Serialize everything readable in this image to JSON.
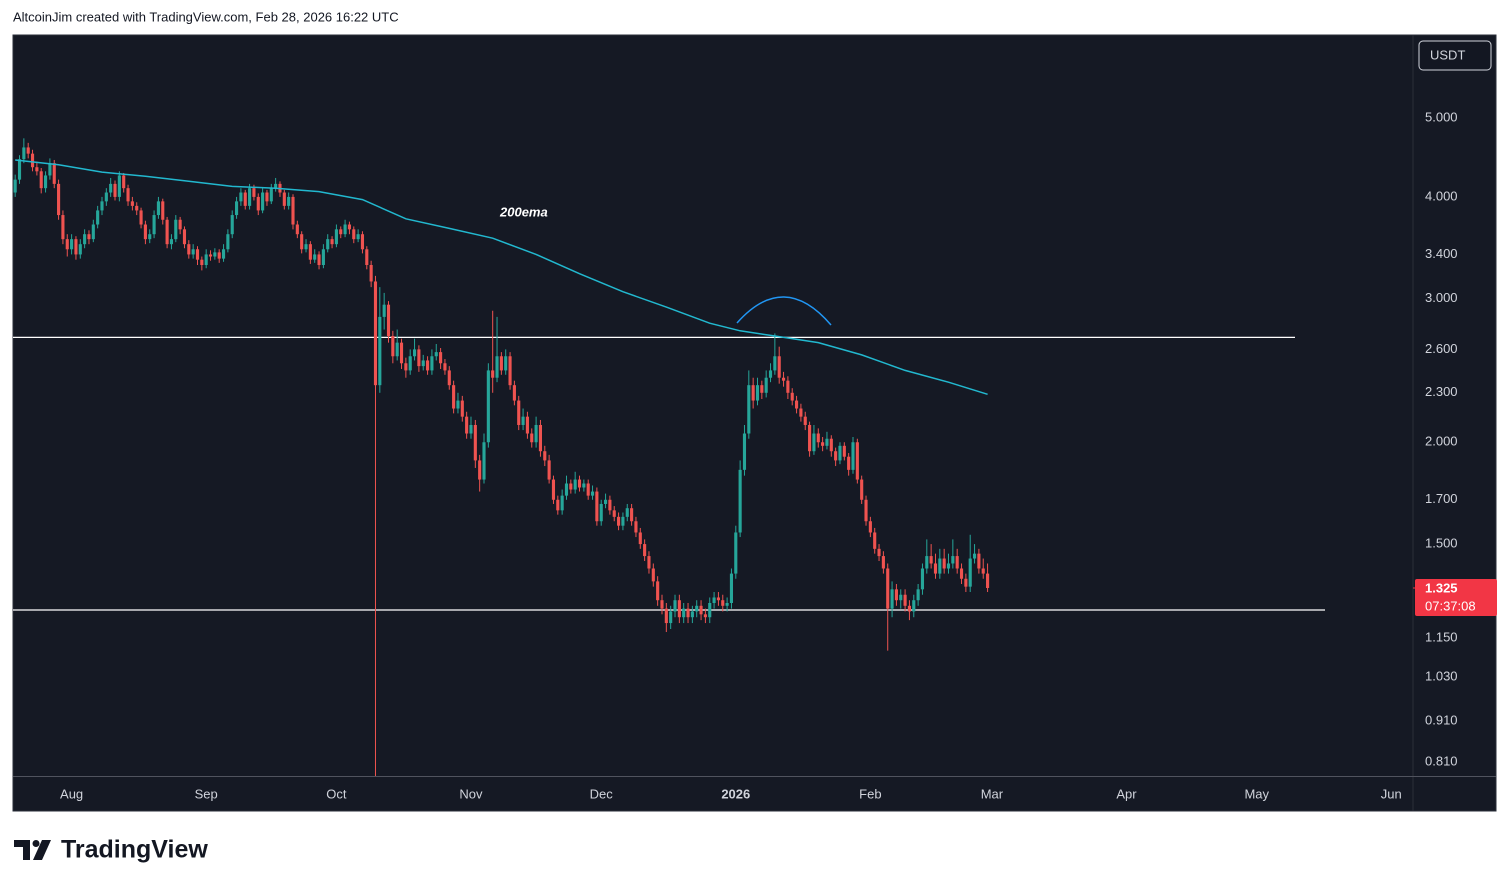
{
  "header": "AltcoinJim created with TradingView.com, Feb 28, 2026 16:22 UTC",
  "currency": "USDT",
  "brand": "TradingView",
  "chart_data": {
    "type": "candlestick",
    "up_color": "#26a69a",
    "down_color": "#ef5350",
    "log_scale": true,
    "xlim": [
      -0.5,
      322
    ],
    "xticks": [
      {
        "value": 13,
        "label": "Aug"
      },
      {
        "value": 44,
        "label": "Sep"
      },
      {
        "value": 74,
        "label": "Oct"
      },
      {
        "value": 105,
        "label": "Nov"
      },
      {
        "value": 135,
        "label": "Dec"
      },
      {
        "value": 166,
        "label": "2026"
      },
      {
        "value": 197,
        "label": "Feb"
      },
      {
        "value": 225,
        "label": "Mar"
      },
      {
        "value": 256,
        "label": "Apr"
      },
      {
        "value": 286,
        "label": "May"
      },
      {
        "value": 317,
        "label": "Jun"
      }
    ],
    "ylim": [
      0.779,
      6.32
    ],
    "yticks": [
      {
        "value": 5,
        "label": "5.000"
      },
      {
        "value": 4,
        "label": "4.000"
      },
      {
        "value": 3.4,
        "label": "3.400"
      },
      {
        "value": 3,
        "label": "3.000"
      },
      {
        "value": 2.6,
        "label": "2.600"
      },
      {
        "value": 2.3,
        "label": "2.300"
      },
      {
        "value": 2,
        "label": "2.000"
      },
      {
        "value": 1.7,
        "label": "1.700"
      },
      {
        "value": 1.5,
        "label": "1.500"
      },
      {
        "value": 1.15,
        "label": "1.150"
      },
      {
        "value": 1.03,
        "label": "1.030"
      },
      {
        "value": 0.91,
        "label": "0.910"
      },
      {
        "value": 0.81,
        "label": "0.810"
      }
    ],
    "ohlc": [
      [
        4.05,
        4.26,
        4.0,
        4.2
      ],
      [
        4.2,
        4.5,
        4.15,
        4.45
      ],
      [
        4.45,
        4.72,
        4.4,
        4.6
      ],
      [
        4.6,
        4.66,
        4.46,
        4.52
      ],
      [
        4.52,
        4.57,
        4.3,
        4.35
      ],
      [
        4.35,
        4.42,
        4.25,
        4.3
      ],
      [
        4.3,
        4.34,
        4.04,
        4.1
      ],
      [
        4.1,
        4.3,
        4.05,
        4.25
      ],
      [
        4.25,
        4.46,
        4.2,
        4.4
      ],
      [
        4.4,
        4.44,
        4.1,
        4.15
      ],
      [
        4.15,
        4.2,
        3.75,
        3.8
      ],
      [
        3.8,
        3.85,
        3.5,
        3.55
      ],
      [
        3.55,
        3.6,
        3.38,
        3.45
      ],
      [
        3.45,
        3.6,
        3.4,
        3.55
      ],
      [
        3.55,
        3.58,
        3.35,
        3.4
      ],
      [
        3.4,
        3.55,
        3.36,
        3.5
      ],
      [
        3.5,
        3.65,
        3.46,
        3.6
      ],
      [
        3.6,
        3.64,
        3.5,
        3.55
      ],
      [
        3.55,
        3.75,
        3.52,
        3.7
      ],
      [
        3.7,
        3.9,
        3.66,
        3.85
      ],
      [
        3.85,
        4.0,
        3.8,
        3.95
      ],
      [
        3.95,
        4.1,
        3.9,
        4.05
      ],
      [
        4.05,
        4.22,
        4.0,
        4.15
      ],
      [
        4.15,
        4.19,
        3.96,
        4.0
      ],
      [
        4.0,
        4.3,
        3.95,
        4.25
      ],
      [
        4.25,
        4.28,
        4.05,
        4.1
      ],
      [
        4.1,
        4.14,
        3.9,
        3.95
      ],
      [
        3.95,
        4.0,
        3.85,
        3.9
      ],
      [
        3.9,
        3.94,
        3.8,
        3.85
      ],
      [
        3.85,
        3.88,
        3.66,
        3.7
      ],
      [
        3.7,
        3.74,
        3.5,
        3.55
      ],
      [
        3.55,
        3.65,
        3.51,
        3.6
      ],
      [
        3.6,
        3.85,
        3.56,
        3.8
      ],
      [
        3.8,
        4.0,
        3.76,
        3.95
      ],
      [
        3.95,
        3.98,
        3.7,
        3.75
      ],
      [
        3.75,
        3.78,
        3.46,
        3.5
      ],
      [
        3.5,
        3.6,
        3.45,
        3.55
      ],
      [
        3.55,
        3.8,
        3.52,
        3.75
      ],
      [
        3.75,
        3.78,
        3.6,
        3.65
      ],
      [
        3.65,
        3.68,
        3.46,
        3.5
      ],
      [
        3.5,
        3.54,
        3.36,
        3.4
      ],
      [
        3.4,
        3.5,
        3.36,
        3.45
      ],
      [
        3.45,
        3.48,
        3.3,
        3.35
      ],
      [
        3.35,
        3.38,
        3.25,
        3.3
      ],
      [
        3.3,
        3.45,
        3.27,
        3.4
      ],
      [
        3.4,
        3.44,
        3.34,
        3.38
      ],
      [
        3.38,
        3.46,
        3.35,
        3.42
      ],
      [
        3.42,
        3.45,
        3.32,
        3.36
      ],
      [
        3.36,
        3.5,
        3.33,
        3.45
      ],
      [
        3.45,
        3.65,
        3.42,
        3.6
      ],
      [
        3.6,
        3.85,
        3.56,
        3.8
      ],
      [
        3.8,
        4.0,
        3.76,
        3.95
      ],
      [
        3.95,
        4.1,
        3.9,
        4.05
      ],
      [
        4.05,
        4.08,
        3.86,
        3.9
      ],
      [
        3.9,
        4.15,
        3.86,
        4.1
      ],
      [
        4.1,
        4.14,
        3.96,
        4.0
      ],
      [
        4.0,
        4.04,
        3.8,
        3.85
      ],
      [
        3.85,
        4.1,
        3.82,
        4.05
      ],
      [
        4.05,
        4.08,
        3.9,
        3.95
      ],
      [
        3.95,
        4.15,
        3.92,
        4.1
      ],
      [
        4.1,
        4.22,
        4.06,
        4.15
      ],
      [
        4.15,
        4.18,
        4.0,
        4.05
      ],
      [
        4.05,
        4.08,
        3.86,
        3.9
      ],
      [
        3.9,
        4.05,
        3.86,
        4.0
      ],
      [
        4.0,
        4.03,
        3.65,
        3.7
      ],
      [
        3.7,
        3.74,
        3.56,
        3.6
      ],
      [
        3.6,
        3.63,
        3.41,
        3.45
      ],
      [
        3.45,
        3.55,
        3.42,
        3.5
      ],
      [
        3.5,
        3.53,
        3.31,
        3.35
      ],
      [
        3.35,
        3.45,
        3.32,
        3.4
      ],
      [
        3.4,
        3.43,
        3.26,
        3.3
      ],
      [
        3.3,
        3.5,
        3.27,
        3.45
      ],
      [
        3.45,
        3.6,
        3.42,
        3.55
      ],
      [
        3.55,
        3.58,
        3.46,
        3.5
      ],
      [
        3.5,
        3.7,
        3.47,
        3.65
      ],
      [
        3.65,
        3.68,
        3.56,
        3.6
      ],
      [
        3.6,
        3.75,
        3.57,
        3.7
      ],
      [
        3.7,
        3.73,
        3.6,
        3.65
      ],
      [
        3.65,
        3.68,
        3.51,
        3.55
      ],
      [
        3.55,
        3.65,
        3.52,
        3.6
      ],
      [
        3.6,
        3.63,
        3.41,
        3.45
      ],
      [
        3.45,
        3.48,
        3.26,
        3.3
      ],
      [
        3.3,
        3.34,
        3.1,
        3.15
      ],
      [
        3.15,
        3.2,
        0.75,
        2.35
      ],
      [
        2.35,
        3.1,
        2.3,
        2.85
      ],
      [
        2.85,
        3.05,
        2.75,
        2.95
      ],
      [
        2.95,
        2.98,
        2.65,
        2.7
      ],
      [
        2.7,
        2.74,
        2.5,
        2.55
      ],
      [
        2.55,
        2.75,
        2.52,
        2.65
      ],
      [
        2.65,
        2.68,
        2.46,
        2.5
      ],
      [
        2.5,
        2.54,
        2.4,
        2.45
      ],
      [
        2.45,
        2.6,
        2.42,
        2.55
      ],
      [
        2.55,
        2.68,
        2.52,
        2.6
      ],
      [
        2.6,
        2.63,
        2.44,
        2.48
      ],
      [
        2.48,
        2.56,
        2.45,
        2.52
      ],
      [
        2.52,
        2.55,
        2.42,
        2.45
      ],
      [
        2.45,
        2.6,
        2.42,
        2.55
      ],
      [
        2.55,
        2.64,
        2.52,
        2.58
      ],
      [
        2.58,
        2.61,
        2.46,
        2.5
      ],
      [
        2.5,
        2.53,
        2.42,
        2.45
      ],
      [
        2.45,
        2.48,
        2.32,
        2.35
      ],
      [
        2.35,
        2.38,
        2.17,
        2.2
      ],
      [
        2.2,
        2.3,
        2.17,
        2.25
      ],
      [
        2.25,
        2.28,
        2.12,
        2.15
      ],
      [
        2.15,
        2.18,
        2.02,
        2.05
      ],
      [
        2.05,
        2.15,
        2.02,
        2.1
      ],
      [
        2.1,
        2.13,
        1.86,
        1.9
      ],
      [
        1.9,
        1.93,
        1.74,
        1.8
      ],
      [
        1.8,
        2.05,
        1.78,
        2.0
      ],
      [
        2.0,
        2.5,
        1.97,
        2.45
      ],
      [
        2.45,
        2.9,
        2.3,
        2.4
      ],
      [
        2.4,
        2.85,
        2.37,
        2.55
      ],
      [
        2.55,
        2.58,
        2.42,
        2.45
      ],
      [
        2.45,
        2.6,
        2.42,
        2.55
      ],
      [
        2.55,
        2.58,
        2.32,
        2.35
      ],
      [
        2.35,
        2.38,
        2.22,
        2.25
      ],
      [
        2.25,
        2.28,
        2.07,
        2.1
      ],
      [
        2.1,
        2.2,
        2.07,
        2.15
      ],
      [
        2.15,
        2.18,
        2.02,
        2.05
      ],
      [
        2.05,
        2.08,
        1.97,
        2.0
      ],
      [
        2.0,
        2.15,
        1.97,
        2.1
      ],
      [
        2.1,
        2.13,
        1.92,
        1.95
      ],
      [
        1.95,
        1.98,
        1.87,
        1.9
      ],
      [
        1.9,
        1.93,
        1.78,
        1.8
      ],
      [
        1.8,
        1.82,
        1.68,
        1.7
      ],
      [
        1.7,
        1.72,
        1.63,
        1.65
      ],
      [
        1.65,
        1.75,
        1.63,
        1.72
      ],
      [
        1.72,
        1.82,
        1.7,
        1.78
      ],
      [
        1.78,
        1.8,
        1.73,
        1.75
      ],
      [
        1.75,
        1.84,
        1.73,
        1.8
      ],
      [
        1.8,
        1.82,
        1.74,
        1.76
      ],
      [
        1.76,
        1.8,
        1.74,
        1.78
      ],
      [
        1.78,
        1.8,
        1.7,
        1.72
      ],
      [
        1.72,
        1.77,
        1.7,
        1.74
      ],
      [
        1.74,
        1.76,
        1.58,
        1.6
      ],
      [
        1.6,
        1.7,
        1.58,
        1.68
      ],
      [
        1.68,
        1.73,
        1.66,
        1.7
      ],
      [
        1.7,
        1.72,
        1.63,
        1.65
      ],
      [
        1.65,
        1.67,
        1.6,
        1.62
      ],
      [
        1.62,
        1.64,
        1.56,
        1.58
      ],
      [
        1.58,
        1.64,
        1.56,
        1.62
      ],
      [
        1.62,
        1.68,
        1.6,
        1.66
      ],
      [
        1.66,
        1.68,
        1.58,
        1.6
      ],
      [
        1.6,
        1.62,
        1.53,
        1.55
      ],
      [
        1.55,
        1.57,
        1.48,
        1.5
      ],
      [
        1.5,
        1.52,
        1.43,
        1.45
      ],
      [
        1.45,
        1.47,
        1.38,
        1.4
      ],
      [
        1.4,
        1.42,
        1.33,
        1.35
      ],
      [
        1.35,
        1.37,
        1.26,
        1.28
      ],
      [
        1.28,
        1.3,
        1.23,
        1.25
      ],
      [
        1.25,
        1.27,
        1.17,
        1.2
      ],
      [
        1.2,
        1.26,
        1.18,
        1.24
      ],
      [
        1.24,
        1.3,
        1.22,
        1.28
      ],
      [
        1.28,
        1.3,
        1.2,
        1.22
      ],
      [
        1.22,
        1.27,
        1.2,
        1.25
      ],
      [
        1.25,
        1.27,
        1.2,
        1.22
      ],
      [
        1.22,
        1.26,
        1.2,
        1.24
      ],
      [
        1.24,
        1.28,
        1.22,
        1.26
      ],
      [
        1.26,
        1.28,
        1.21,
        1.23
      ],
      [
        1.23,
        1.25,
        1.2,
        1.22
      ],
      [
        1.22,
        1.29,
        1.2,
        1.27
      ],
      [
        1.27,
        1.31,
        1.25,
        1.29
      ],
      [
        1.29,
        1.31,
        1.26,
        1.28
      ],
      [
        1.28,
        1.3,
        1.24,
        1.26
      ],
      [
        1.26,
        1.29,
        1.24,
        1.27
      ],
      [
        1.27,
        1.4,
        1.25,
        1.38
      ],
      [
        1.38,
        1.58,
        1.36,
        1.55
      ],
      [
        1.55,
        1.9,
        1.53,
        1.85
      ],
      [
        1.85,
        2.1,
        1.82,
        2.05
      ],
      [
        2.05,
        2.45,
        2.02,
        2.35
      ],
      [
        2.35,
        2.4,
        2.2,
        2.25
      ],
      [
        2.25,
        2.4,
        2.22,
        2.35
      ],
      [
        2.35,
        2.38,
        2.26,
        2.3
      ],
      [
        2.3,
        2.45,
        2.27,
        2.4
      ],
      [
        2.4,
        2.5,
        2.37,
        2.45
      ],
      [
        2.45,
        2.72,
        2.42,
        2.55
      ],
      [
        2.55,
        2.62,
        2.36,
        2.4
      ],
      [
        2.4,
        2.44,
        2.34,
        2.38
      ],
      [
        2.38,
        2.41,
        2.26,
        2.3
      ],
      [
        2.3,
        2.33,
        2.22,
        2.25
      ],
      [
        2.25,
        2.28,
        2.17,
        2.2
      ],
      [
        2.2,
        2.23,
        2.12,
        2.15
      ],
      [
        2.15,
        2.18,
        2.07,
        2.1
      ],
      [
        2.1,
        2.12,
        1.92,
        1.95
      ],
      [
        1.95,
        2.1,
        1.93,
        2.05
      ],
      [
        2.05,
        2.08,
        1.97,
        2.0
      ],
      [
        2.0,
        2.03,
        1.95,
        1.98
      ],
      [
        1.98,
        2.06,
        1.96,
        2.02
      ],
      [
        2.02,
        2.04,
        1.92,
        1.95
      ],
      [
        1.95,
        1.97,
        1.87,
        1.9
      ],
      [
        1.9,
        2.0,
        1.88,
        1.98
      ],
      [
        1.98,
        2.0,
        1.9,
        1.92
      ],
      [
        1.92,
        1.94,
        1.82,
        1.85
      ],
      [
        1.85,
        2.03,
        1.83,
        2.0
      ],
      [
        2.0,
        2.02,
        1.78,
        1.8
      ],
      [
        1.8,
        1.82,
        1.68,
        1.7
      ],
      [
        1.7,
        1.72,
        1.58,
        1.6
      ],
      [
        1.6,
        1.62,
        1.53,
        1.55
      ],
      [
        1.55,
        1.57,
        1.46,
        1.48
      ],
      [
        1.48,
        1.5,
        1.43,
        1.45
      ],
      [
        1.45,
        1.47,
        1.38,
        1.4
      ],
      [
        1.4,
        1.42,
        1.11,
        1.25
      ],
      [
        1.25,
        1.35,
        1.22,
        1.32
      ],
      [
        1.32,
        1.34,
        1.26,
        1.28
      ],
      [
        1.28,
        1.32,
        1.25,
        1.3
      ],
      [
        1.3,
        1.32,
        1.24,
        1.26
      ],
      [
        1.26,
        1.28,
        1.21,
        1.24
      ],
      [
        1.24,
        1.3,
        1.22,
        1.28
      ],
      [
        1.28,
        1.34,
        1.26,
        1.32
      ],
      [
        1.32,
        1.42,
        1.3,
        1.4
      ],
      [
        1.4,
        1.52,
        1.38,
        1.45
      ],
      [
        1.45,
        1.5,
        1.4,
        1.42
      ],
      [
        1.42,
        1.46,
        1.36,
        1.38
      ],
      [
        1.38,
        1.48,
        1.36,
        1.44
      ],
      [
        1.44,
        1.48,
        1.38,
        1.4
      ],
      [
        1.4,
        1.46,
        1.38,
        1.42
      ],
      [
        1.42,
        1.52,
        1.4,
        1.45
      ],
      [
        1.45,
        1.48,
        1.38,
        1.4
      ],
      [
        1.4,
        1.42,
        1.34,
        1.36
      ],
      [
        1.36,
        1.38,
        1.31,
        1.33
      ],
      [
        1.33,
        1.54,
        1.31,
        1.44
      ],
      [
        1.44,
        1.5,
        1.42,
        1.46
      ],
      [
        1.46,
        1.48,
        1.38,
        1.4
      ],
      [
        1.4,
        1.44,
        1.36,
        1.38
      ],
      [
        1.38,
        1.42,
        1.31,
        1.325
      ]
    ],
    "ema": {
      "name": "200ema",
      "color": "#22b8cf",
      "x": [
        0,
        10,
        20,
        30,
        40,
        50,
        60,
        70,
        80,
        90,
        100,
        110,
        120,
        130,
        140,
        150,
        160,
        167,
        175,
        185,
        195,
        205,
        215,
        224
      ],
      "values": [
        4.44,
        4.38,
        4.29,
        4.24,
        4.18,
        4.12,
        4.1,
        4.06,
        3.97,
        3.76,
        3.66,
        3.56,
        3.4,
        3.22,
        3.06,
        2.93,
        2.8,
        2.74,
        2.7,
        2.65,
        2.56,
        2.45,
        2.37,
        2.29
      ]
    },
    "levels": [
      2.69,
      1.245
    ],
    "level_color": "#ffffff",
    "last_price": 1.325,
    "last_price_color": "#f23645",
    "countdown": "07:37:08"
  }
}
